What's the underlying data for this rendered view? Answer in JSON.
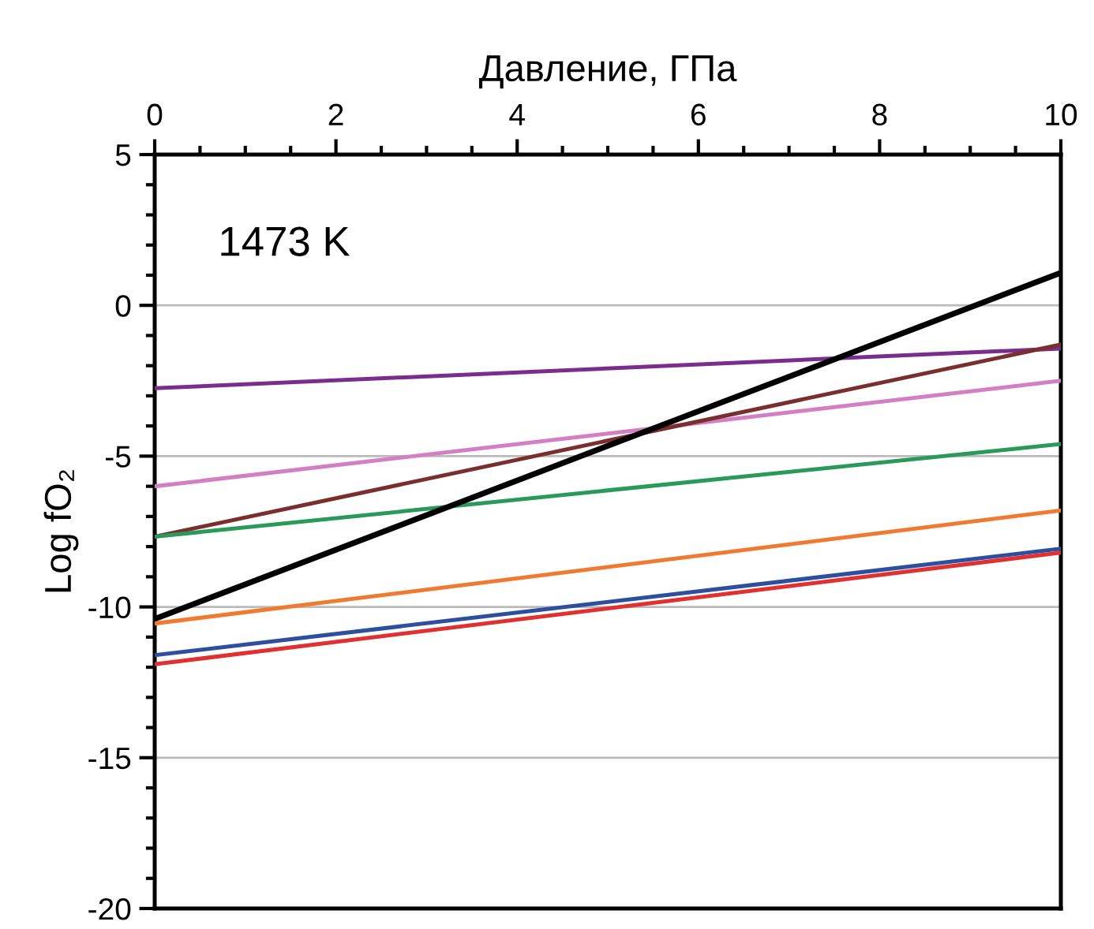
{
  "chart_data": {
    "type": "line",
    "xlabel": "Давление, ГПа",
    "ylabel": "Log fO₂",
    "annotations": [
      "1473 K"
    ],
    "x": [
      0,
      10
    ],
    "xlim": [
      0,
      10
    ],
    "xticks": [
      0,
      2,
      4,
      6,
      8,
      10
    ],
    "ylim": [
      -20,
      5
    ],
    "yticks": [
      -20,
      -15,
      -10,
      -5,
      0,
      5
    ],
    "grid": "y",
    "marker": "none",
    "line_style": "solid",
    "series": [
      {
        "color": "#7b2d8e",
        "values": [
          -2.75,
          -1.43
        ]
      },
      {
        "color": "#d27fc4",
        "values": [
          -6.0,
          -2.5
        ]
      },
      {
        "color": "#7a2e2e",
        "values": [
          -7.67,
          -1.3
        ]
      },
      {
        "color": "#2a9a5a",
        "values": [
          -7.67,
          -4.6
        ]
      },
      {
        "color": "#000000",
        "values": [
          -10.4,
          1.08
        ]
      },
      {
        "color": "#f07a30",
        "values": [
          -10.55,
          -6.8
        ]
      },
      {
        "color": "#2e4ea0",
        "values": [
          -11.6,
          -8.07
        ]
      },
      {
        "color": "#e03030",
        "values": [
          -11.9,
          -8.2
        ]
      }
    ]
  }
}
